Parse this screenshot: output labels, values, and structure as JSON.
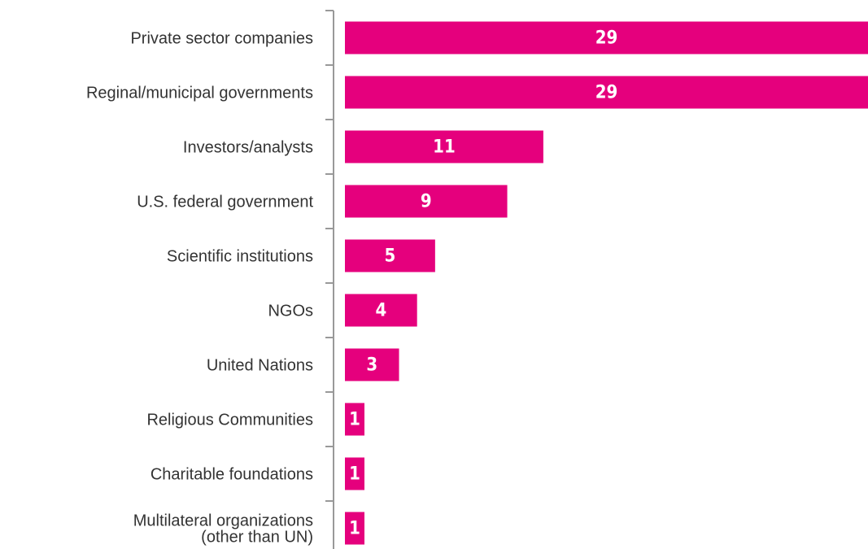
{
  "chart_data": {
    "type": "hbar",
    "categories": [
      "Private sector companies",
      "Reginal/municipal governments",
      "Investors/analysts",
      "U.S. federal government",
      "Scientific institutions",
      "NGOs",
      "United Nations",
      "Religious Communities",
      "Charitable foundations",
      "Multilateral organizations\n(other than UN)"
    ],
    "values": [
      29,
      29,
      11,
      9,
      5,
      4,
      3,
      1,
      1,
      1
    ],
    "color": "#e5007d",
    "xlim": [
      0,
      29
    ]
  }
}
